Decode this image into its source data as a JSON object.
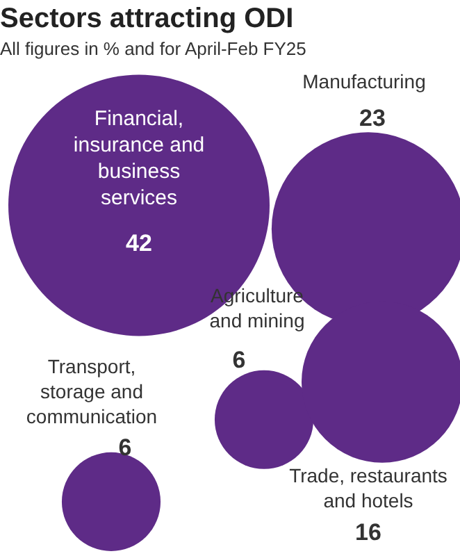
{
  "chart_data": {
    "type": "other",
    "title": "Sectors attracting ODI",
    "subtitle": "All figures in % and for April-Feb FY25",
    "categories": [
      "Financial, insurance and business services",
      "Manufacturing",
      "Agriculture and mining",
      "Transport, storage and communication",
      "Trade, restaurants and hotels"
    ],
    "values": [
      42,
      23,
      6,
      6,
      16
    ],
    "color": "#5e2b87",
    "data_labels": true
  }
}
